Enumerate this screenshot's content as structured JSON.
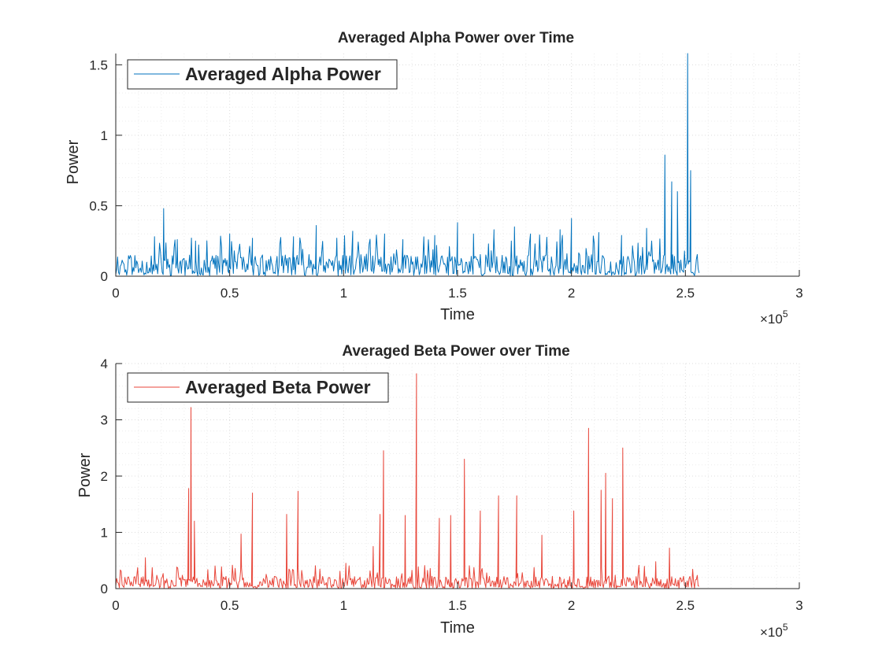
{
  "chart_data": [
    {
      "type": "line",
      "title": "Averaged Alpha Power over Time",
      "xlabel": "Time",
      "ylabel": "Power",
      "xlim": [
        0,
        300000
      ],
      "ylim": [
        0,
        1.58
      ],
      "xticks": [
        0,
        0.5,
        1,
        1.5,
        2,
        2.5,
        3
      ],
      "xtick_labels": [
        "0",
        "0.5",
        "1",
        "1.5",
        "2",
        "2.5",
        "3"
      ],
      "yticks": [
        0,
        0.5,
        1,
        1.5
      ],
      "ytick_labels": [
        "0",
        "0.5",
        "1",
        "1.5"
      ],
      "x_exponent": "×10",
      "x_exponent_power": "5",
      "grid": true,
      "minor_grid": true,
      "legend_position": "top-left",
      "color": "#0072bd",
      "series": [
        {
          "name": "Averaged Alpha Power",
          "x_end": 256000,
          "baseline": 0.07,
          "peaks": [
            [
              21000,
              0.48
            ],
            [
              17000,
              0.28
            ],
            [
              27000,
              0.26
            ],
            [
              35000,
              0.25
            ],
            [
              50000,
              0.3
            ],
            [
              60000,
              0.27
            ],
            [
              78000,
              0.28
            ],
            [
              88000,
              0.36
            ],
            [
              97000,
              0.27
            ],
            [
              104000,
              0.32
            ],
            [
              118000,
              0.3
            ],
            [
              126000,
              0.26
            ],
            [
              140000,
              0.29
            ],
            [
              150000,
              0.38
            ],
            [
              157000,
              0.3
            ],
            [
              166000,
              0.33
            ],
            [
              175000,
              0.35
            ],
            [
              182000,
              0.3
            ],
            [
              195000,
              0.33
            ],
            [
              200000,
              0.41
            ],
            [
              212000,
              0.31
            ],
            [
              222000,
              0.29
            ],
            [
              233000,
              0.34
            ],
            [
              241000,
              0.86
            ],
            [
              244000,
              0.67
            ],
            [
              246500,
              0.6
            ],
            [
              251000,
              1.58
            ],
            [
              252300,
              0.75
            ]
          ]
        }
      ]
    },
    {
      "type": "line",
      "title": "Averaged Beta Power over Time",
      "xlabel": "Time",
      "ylabel": "Power",
      "xlim": [
        0,
        300000
      ],
      "ylim": [
        0,
        4
      ],
      "xticks": [
        0,
        0.5,
        1,
        1.5,
        2,
        2.5,
        3
      ],
      "xtick_labels": [
        "0",
        "0.5",
        "1",
        "1.5",
        "2",
        "2.5",
        "3"
      ],
      "yticks": [
        0,
        1,
        2,
        3,
        4
      ],
      "ytick_labels": [
        "0",
        "1",
        "2",
        "3",
        "4"
      ],
      "x_exponent": "×10",
      "x_exponent_power": "5",
      "grid": true,
      "minor_grid": true,
      "legend_position": "top-left",
      "color": "#e8463a",
      "series": [
        {
          "name": "Averaged Beta Power",
          "x_end": 256000,
          "baseline": 0.1,
          "peaks": [
            [
              13000,
              0.55
            ],
            [
              32000,
              1.78
            ],
            [
              33000,
              3.22
            ],
            [
              34500,
              1.2
            ],
            [
              55000,
              0.97
            ],
            [
              60000,
              1.7
            ],
            [
              75000,
              1.32
            ],
            [
              80000,
              1.73
            ],
            [
              101000,
              0.45
            ],
            [
              113000,
              0.75
            ],
            [
              116000,
              1.32
            ],
            [
              117500,
              2.45
            ],
            [
              127000,
              1.3
            ],
            [
              132000,
              3.82
            ],
            [
              142000,
              1.25
            ],
            [
              147000,
              1.3
            ],
            [
              153000,
              2.3
            ],
            [
              160000,
              1.38
            ],
            [
              168000,
              1.65
            ],
            [
              176000,
              1.65
            ],
            [
              187000,
              0.95
            ],
            [
              201000,
              1.38
            ],
            [
              207500,
              2.85
            ],
            [
              213000,
              1.75
            ],
            [
              215000,
              2.05
            ],
            [
              218000,
              1.6
            ],
            [
              222500,
              2.5
            ],
            [
              237000,
              0.48
            ],
            [
              243000,
              0.72
            ]
          ]
        }
      ]
    }
  ]
}
